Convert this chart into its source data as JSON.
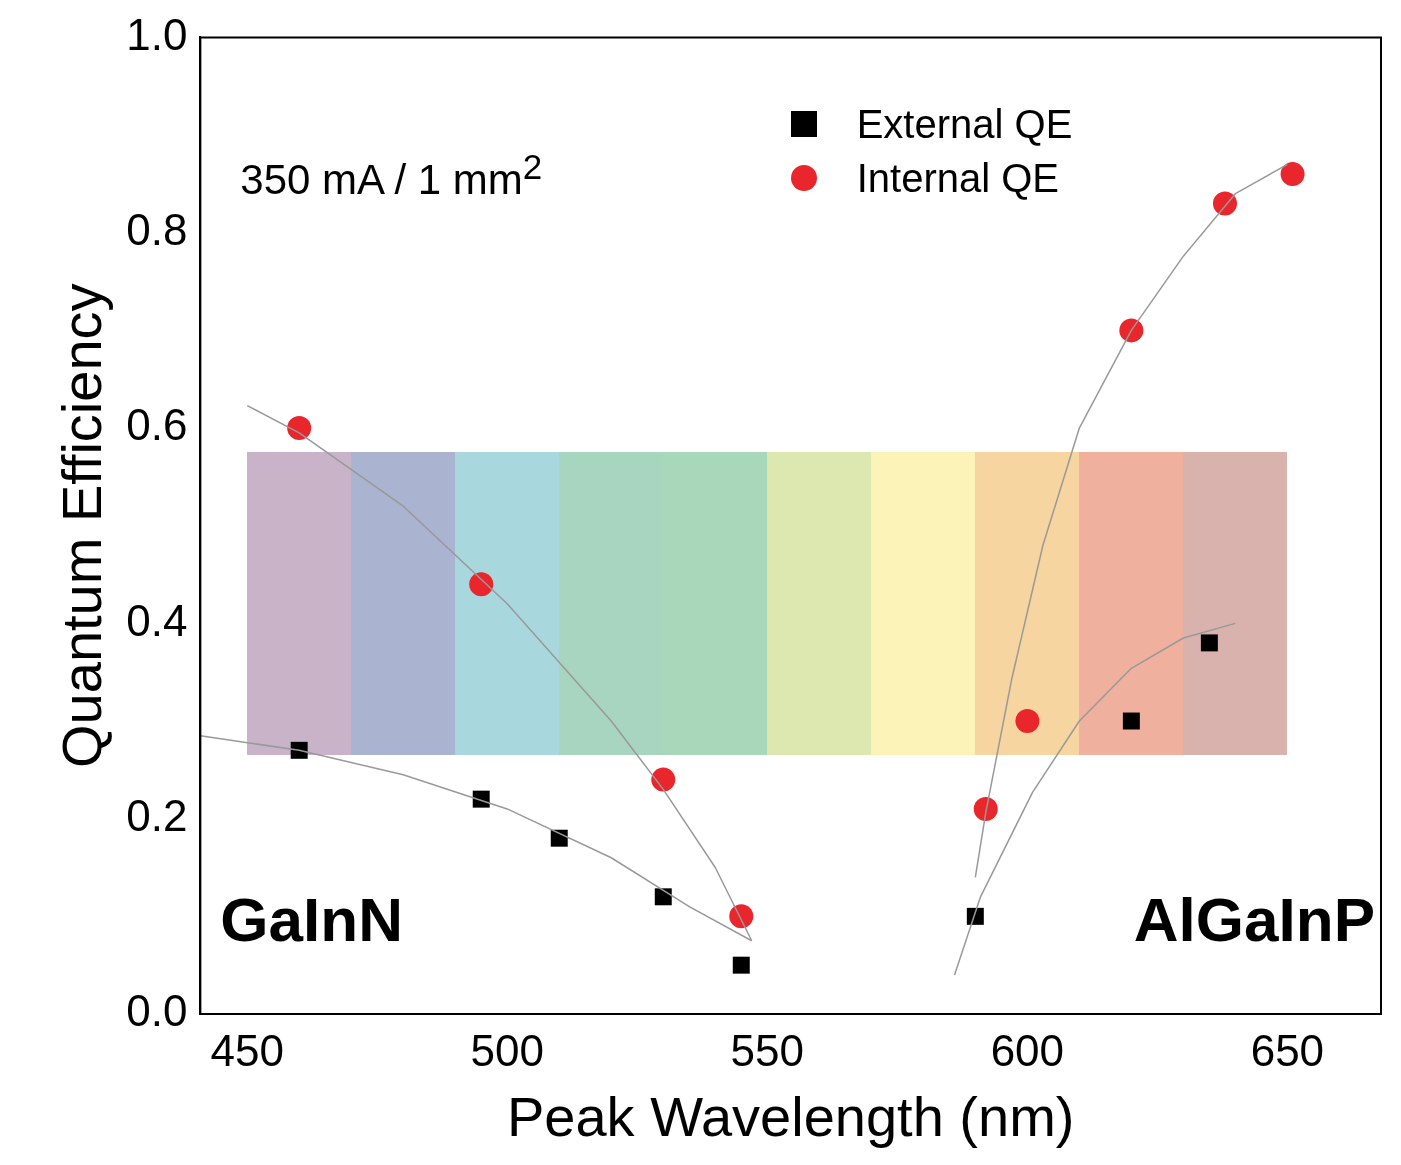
{
  "chart_data": {
    "type": "scatter",
    "xlabel": "Peak Wavelength (nm)",
    "ylabel": "Quantum Efficiency",
    "xlim": [
      441,
      668
    ],
    "xticks": [
      450,
      500,
      550,
      600,
      650
    ],
    "ylim": [
      0,
      1
    ],
    "yticks": [
      {
        "value": 0,
        "label": "0.0"
      },
      {
        "value": 0.2,
        "label": "0.2"
      },
      {
        "value": 0.4,
        "label": "0.4"
      },
      {
        "value": 0.6,
        "label": "0.6"
      },
      {
        "value": 0.8,
        "label": "0.8"
      },
      {
        "value": 1,
        "label": "1.0"
      }
    ],
    "grid": false,
    "legend": "top right",
    "annotations": [
      "350 mA / 1 mm$^{2}$",
      "GaInN",
      "AlGaInP"
    ],
    "series": [
      {
        "name": "External QE",
        "color": "#000000",
        "marker": "square",
        "x": [
          460,
          495,
          510,
          530,
          545,
          590,
          620,
          635
        ],
        "values": [
          0.27,
          0.22,
          0.18,
          0.12,
          0.05,
          0.1,
          0.3,
          0.38
        ]
      },
      {
        "name": "Internal QE",
        "color": "#e8262c",
        "marker": "circle",
        "x": [
          460,
          495,
          530,
          545,
          592,
          600,
          620,
          638,
          651
        ],
        "values": [
          0.6,
          0.44,
          0.24,
          0.1,
          0.21,
          0.3,
          0.7,
          0.83,
          0.86
        ]
      },
      {
        "type": "line",
        "color": "#999999",
        "marker": "none",
        "line_style": "solid",
        "x": [
          441,
          460,
          480,
          500,
          520,
          535,
          547
        ],
        "values": [
          0.285,
          0.27,
          0.245,
          0.21,
          0.16,
          0.11,
          0.075
        ]
      },
      {
        "type": "line",
        "color": "#999999",
        "marker": "none",
        "line_style": "solid",
        "x": [
          450,
          460,
          480,
          500,
          520,
          530,
          540,
          547
        ],
        "values": [
          0.623,
          0.595,
          0.52,
          0.42,
          0.3,
          0.23,
          0.15,
          0.075
        ]
      },
      {
        "type": "line",
        "color": "#999999",
        "marker": "none",
        "line_style": "solid",
        "x": [
          590,
          592,
          597,
          603,
          610,
          620,
          630,
          640,
          650
        ],
        "values": [
          0.14,
          0.206,
          0.343,
          0.48,
          0.6,
          0.7,
          0.776,
          0.84,
          0.87
        ]
      },
      {
        "type": "line",
        "color": "#999999",
        "marker": "none",
        "line_style": "solid",
        "x": [
          586,
          591,
          601,
          610,
          620,
          630,
          640
        ],
        "values": [
          0.04,
          0.12,
          0.227,
          0.3,
          0.354,
          0.385,
          0.4
        ]
      }
    ]
  }
}
